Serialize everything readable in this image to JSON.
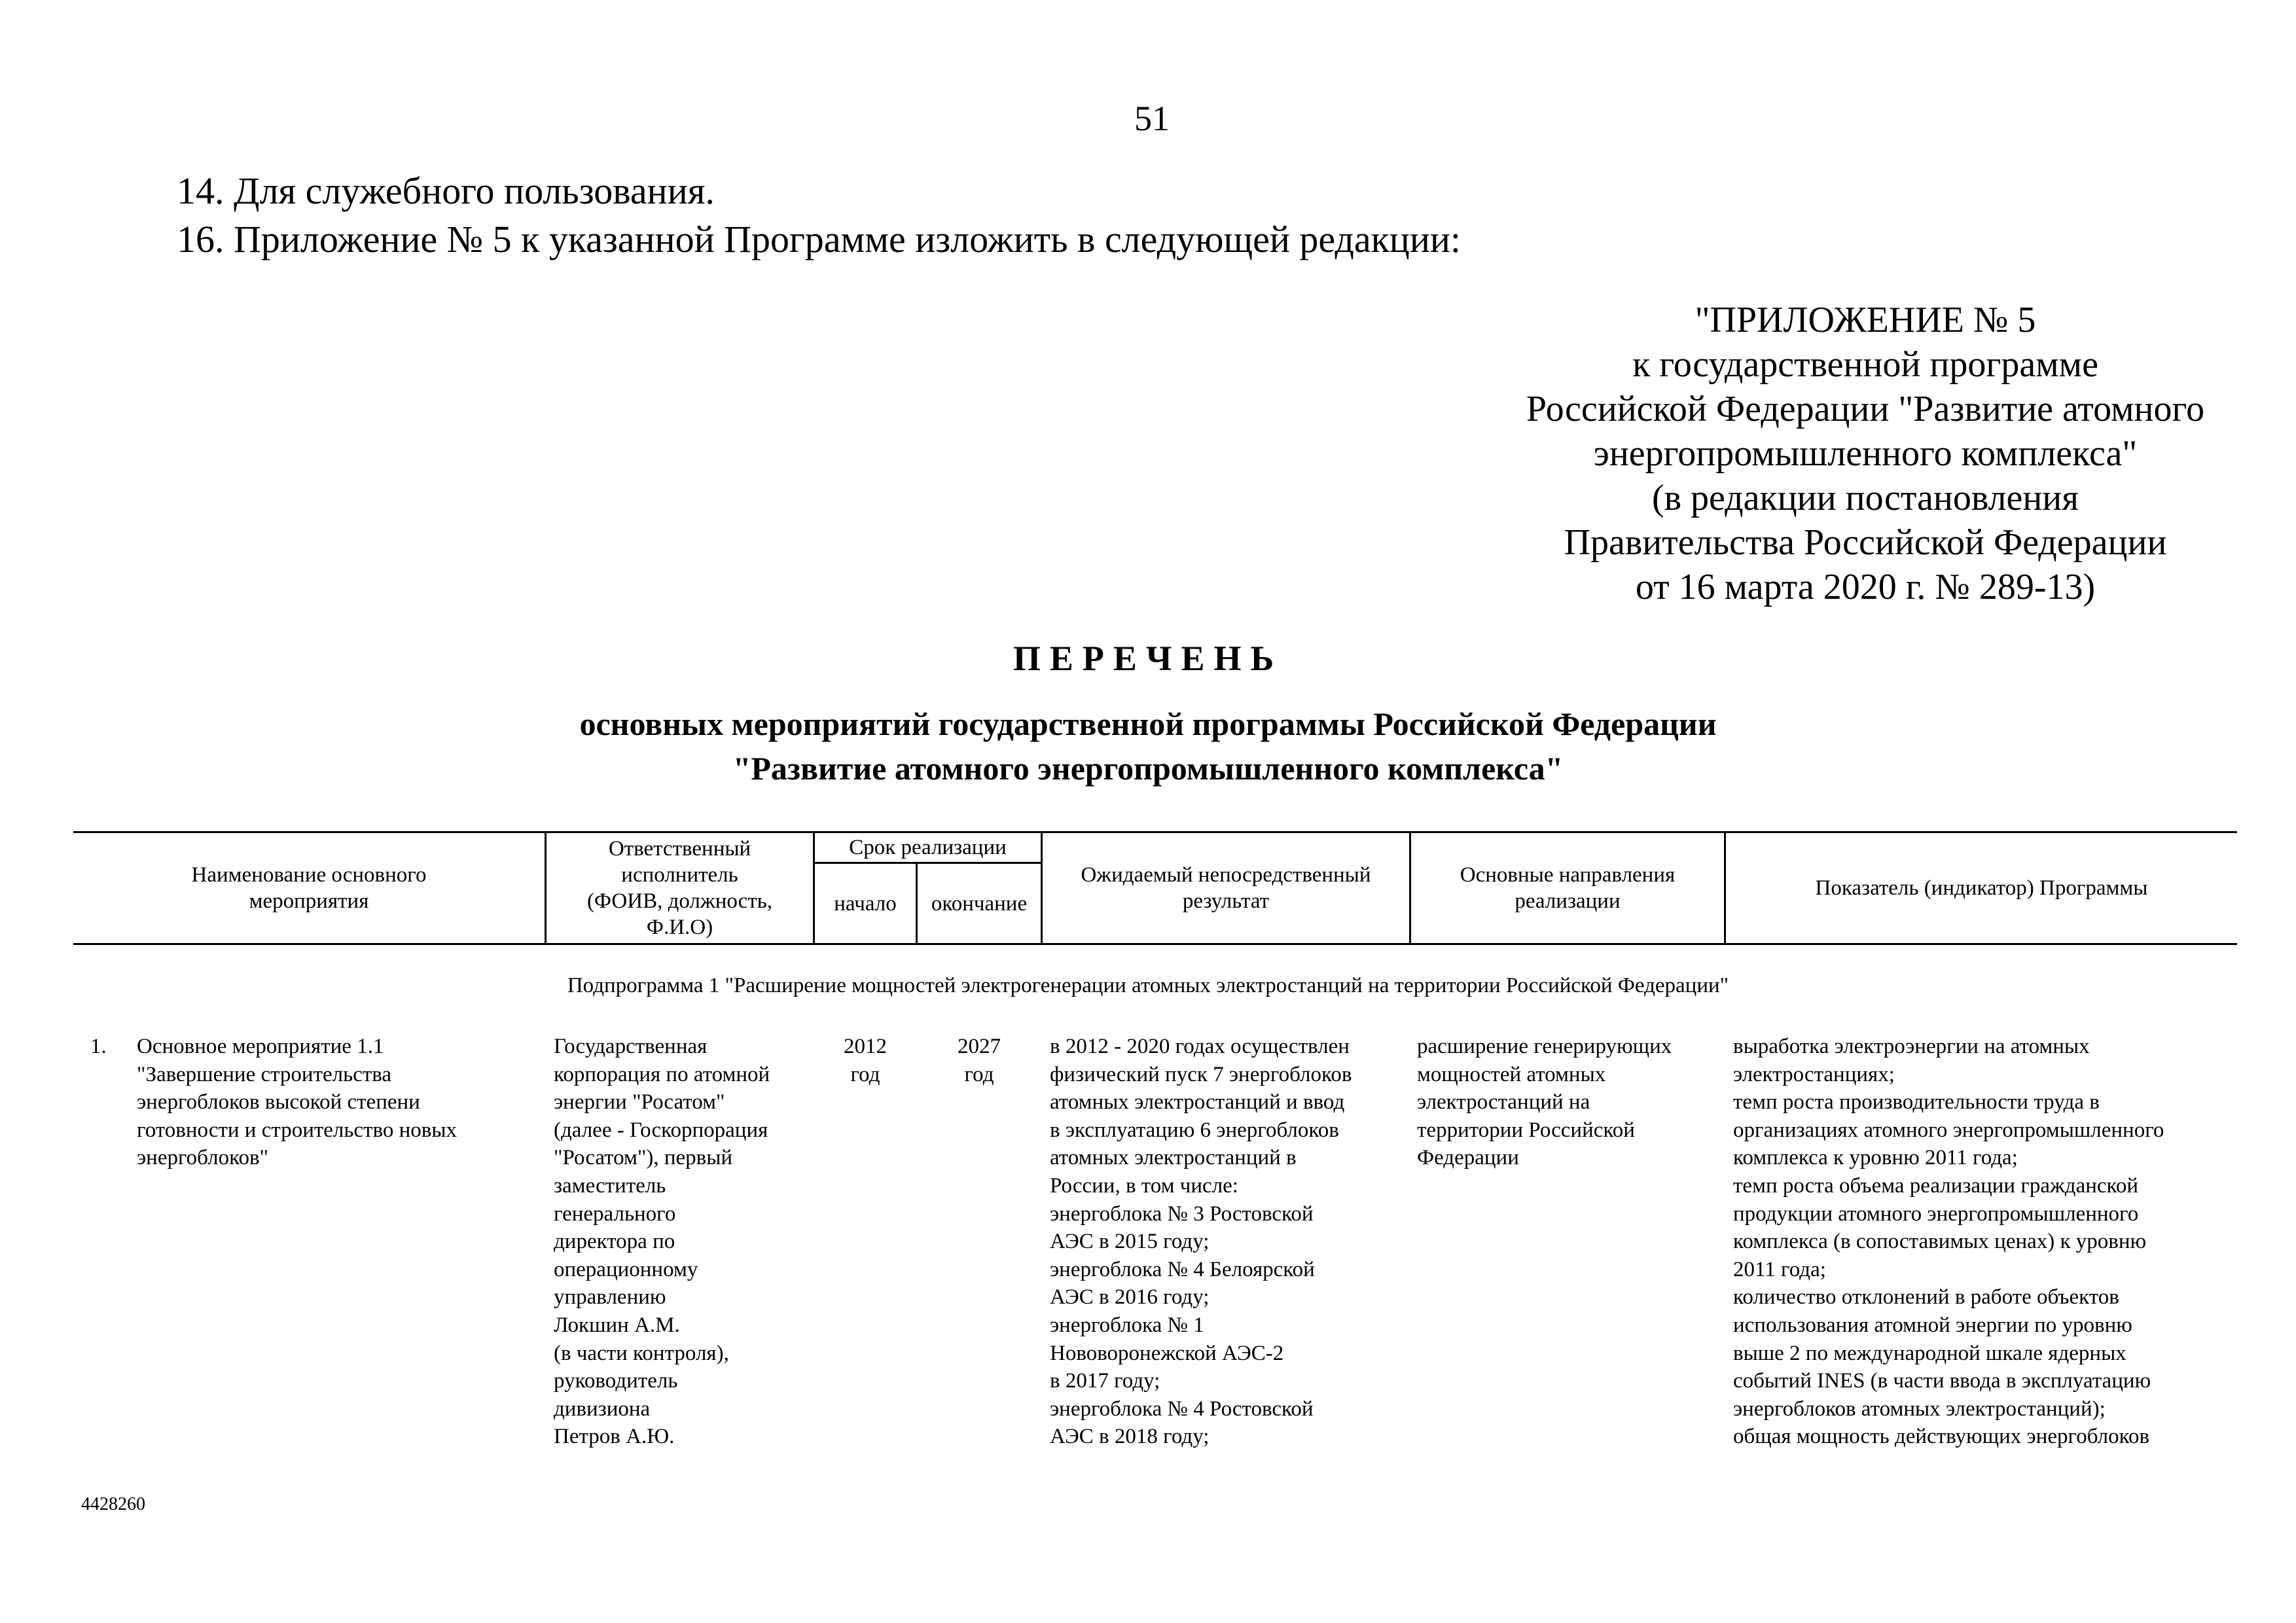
{
  "page_number": "51",
  "paragraphs": [
    "14. Для служебного пользования.",
    "16. Приложение № 5 к указанной Программе изложить в следующей редакции:"
  ],
  "appendix_header": "\"ПРИЛОЖЕНИЕ № 5\nк государственной программе\nРоссийской Федерации \"Развитие атомного\nэнергопромышленного комплекса\"\n(в редакции постановления\nПравительства Российской Федерации\nот 16 марта 2020 г. № 289-13)",
  "title": "ПЕРЕЧЕНЬ",
  "subtitle": "основных мероприятий государственной программы Российской Федерации\n\"Развитие атомного энергопромышленного комплекса\"",
  "table": {
    "headers": {
      "name": "Наименование основного\nмероприятия",
      "executor": "Ответственный\nисполнитель\n(ФОИВ, должность,\nФ.И.О)",
      "period": "Срок реализации",
      "start": "начало",
      "end": "окончание",
      "result": "Ожидаемый непосредственный\nрезультат",
      "directions": "Основные направления\nреализации",
      "indicator": "Показатель (индикатор) Программы"
    },
    "subprogram": "Подпрограмма 1 \"Расширение мощностей электрогенерации атомных электростанций на территории Российской Федерации\"",
    "rows": [
      {
        "number": "1.",
        "name": "Основное мероприятие 1.1\n\"Завершение строительства\nэнергоблоков высокой степени\nготовности и строительство новых\nэнергоблоков\"",
        "executor": "Государственная\nкорпорация по атомной\nэнергии \"Росатом\"\n(далее - Госкорпорация\n\"Росатом\"), первый\nзаместитель\nгенерального\nдиректора по\nоперационному\nуправлению\nЛокшин А.М.\n(в части контроля),\nруководитель\nдивизиона\nПетров А.Ю.",
        "start": "2012\nгод",
        "end": "2027\nгод",
        "result": "в 2012 - 2020 годах осуществлен\nфизический пуск 7 энергоблоков\nатомных электростанций и ввод\nв эксплуатацию 6 энергоблоков\nатомных электростанций в\nРоссии, в том числе:\nэнергоблока № 3 Ростовской\nАЭС в 2015 году;\nэнергоблока № 4 Белоярской\nАЭС в 2016 году;\nэнергоблока № 1\nНововоронежской АЭС-2\nв 2017 году;\nэнергоблока № 4 Ростовской\nАЭС в 2018 году;",
        "directions": "расширение генерирующих\nмощностей атомных\nэлектростанций на\nтерритории Российской\nФедерации",
        "indicator": "выработка электроэнергии на атомных\nэлектростанциях;\nтемп роста производительности труда в\nорганизациях атомного энергопромышленного\nкомплекса к уровню 2011 года;\nтемп роста объема реализации гражданской\nпродукции атомного энергопромышленного\nкомплекса (в сопоставимых ценах) к уровню\n2011 года;\nколичество отклонений в работе объектов\nиспользования атомной энергии по уровню\nвыше 2 по международной шкале ядерных\nсобытий INES (в части ввода в эксплуатацию\nэнергоблоков атомных электростанций);\nобщая мощность действующих энергоблоков"
      }
    ]
  },
  "footer_code": "4428260"
}
